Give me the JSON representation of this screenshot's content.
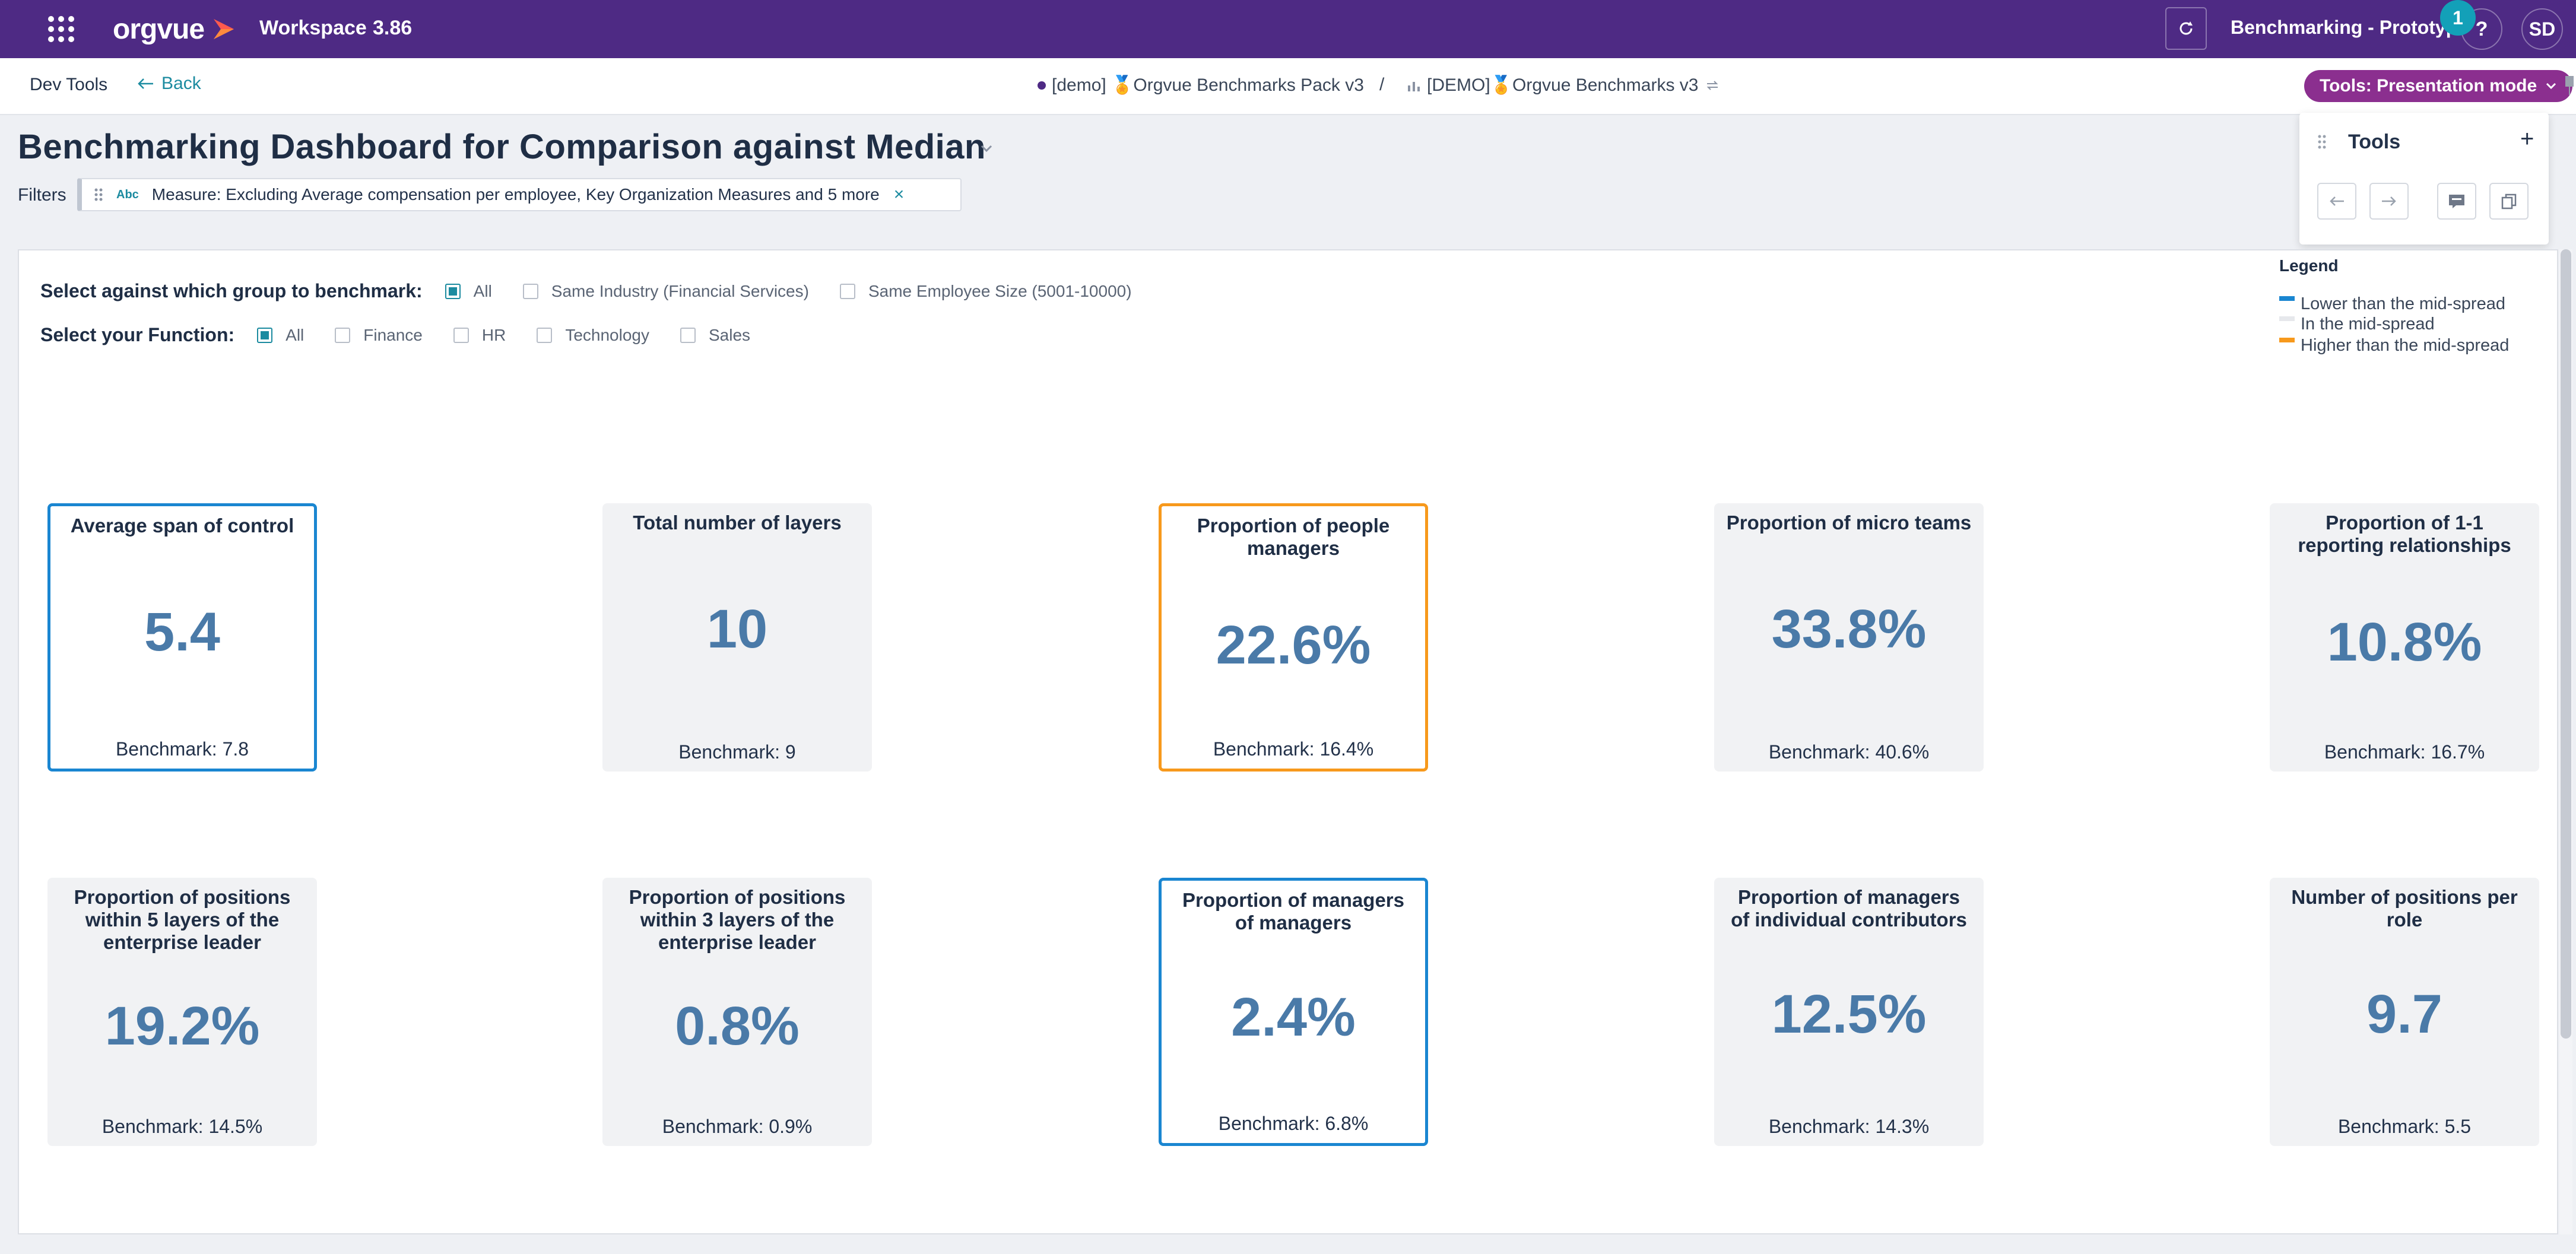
{
  "topbar": {
    "logo_text": "orgvue",
    "workspace_title": "Workspace",
    "workspace_version": "3.86",
    "project_title": "Benchmarking - Prototype",
    "help_label": "?",
    "notification_count": "1",
    "avatar_initials": "SD"
  },
  "subbar": {
    "dev_tools": "Dev Tools",
    "back": "Back",
    "breadcrumb_pack": "[demo] 🏅Orgvue Benchmarks Pack v3",
    "breadcrumb_sep": "/",
    "breadcrumb_view": "[DEMO]🏅Orgvue Benchmarks v3",
    "tools_mode": "Tools: Presentation mode"
  },
  "page": {
    "title": "Benchmarking Dashboard for Comparison against Median",
    "filters_label": "Filters",
    "filter_type": "Abc",
    "filter_text": "Measure: Excluding Average compensation per employee, Key Organization Measures and 5 more",
    "filter_remove": "×"
  },
  "tools_panel": {
    "title": "Tools",
    "add": "+"
  },
  "controls": {
    "group_label": "Select against which group to benchmark:",
    "group_options": [
      {
        "label": "All",
        "checked": true
      },
      {
        "label": "Same Industry (Financial Services)",
        "checked": false
      },
      {
        "label": "Same Employee Size (5001-10000)",
        "checked": false
      }
    ],
    "function_label": "Select your Function:",
    "function_options": [
      {
        "label": "All",
        "checked": true
      },
      {
        "label": "Finance",
        "checked": false
      },
      {
        "label": "HR",
        "checked": false
      },
      {
        "label": "Technology",
        "checked": false
      },
      {
        "label": "Sales",
        "checked": false
      }
    ]
  },
  "legend": {
    "title": "Legend",
    "items": [
      {
        "label": "Lower than the mid-spread",
        "color": "#1a86d1"
      },
      {
        "label": "In the mid-spread",
        "color": "#e6e8ec"
      },
      {
        "label": "Higher than the mid-spread",
        "color": "#f7991c"
      }
    ]
  },
  "cards": [
    {
      "title": "Average span of control",
      "value": "5.4",
      "benchmark": "Benchmark: 7.8",
      "status": "lower"
    },
    {
      "title": "Total number of layers",
      "value": "10",
      "benchmark": "Benchmark: 9",
      "status": "mid"
    },
    {
      "title": "Proportion of people managers",
      "value": "22.6%",
      "benchmark": "Benchmark: 16.4%",
      "status": "higher"
    },
    {
      "title": "Proportion of micro teams",
      "value": "33.8%",
      "benchmark": "Benchmark: 40.6%",
      "status": "mid"
    },
    {
      "title": "Proportion of 1-1 reporting relationships",
      "value": "10.8%",
      "benchmark": "Benchmark: 16.7%",
      "status": "mid"
    },
    {
      "title": "Proportion of positions within 5 layers of the enterprise leader",
      "value": "19.2%",
      "benchmark": "Benchmark: 14.5%",
      "status": "mid"
    },
    {
      "title": "Proportion of positions within 3 layers of the enterprise leader",
      "value": "0.8%",
      "benchmark": "Benchmark: 0.9%",
      "status": "mid"
    },
    {
      "title": "Proportion of managers of managers",
      "value": "2.4%",
      "benchmark": "Benchmark: 6.8%",
      "status": "lower"
    },
    {
      "title": "Proportion of managers of individual contributors",
      "value": "12.5%",
      "benchmark": "Benchmark: 14.3%",
      "status": "mid"
    },
    {
      "title": "Number of positions per role",
      "value": "9.7",
      "benchmark": "Benchmark: 5.5",
      "status": "mid"
    }
  ]
}
